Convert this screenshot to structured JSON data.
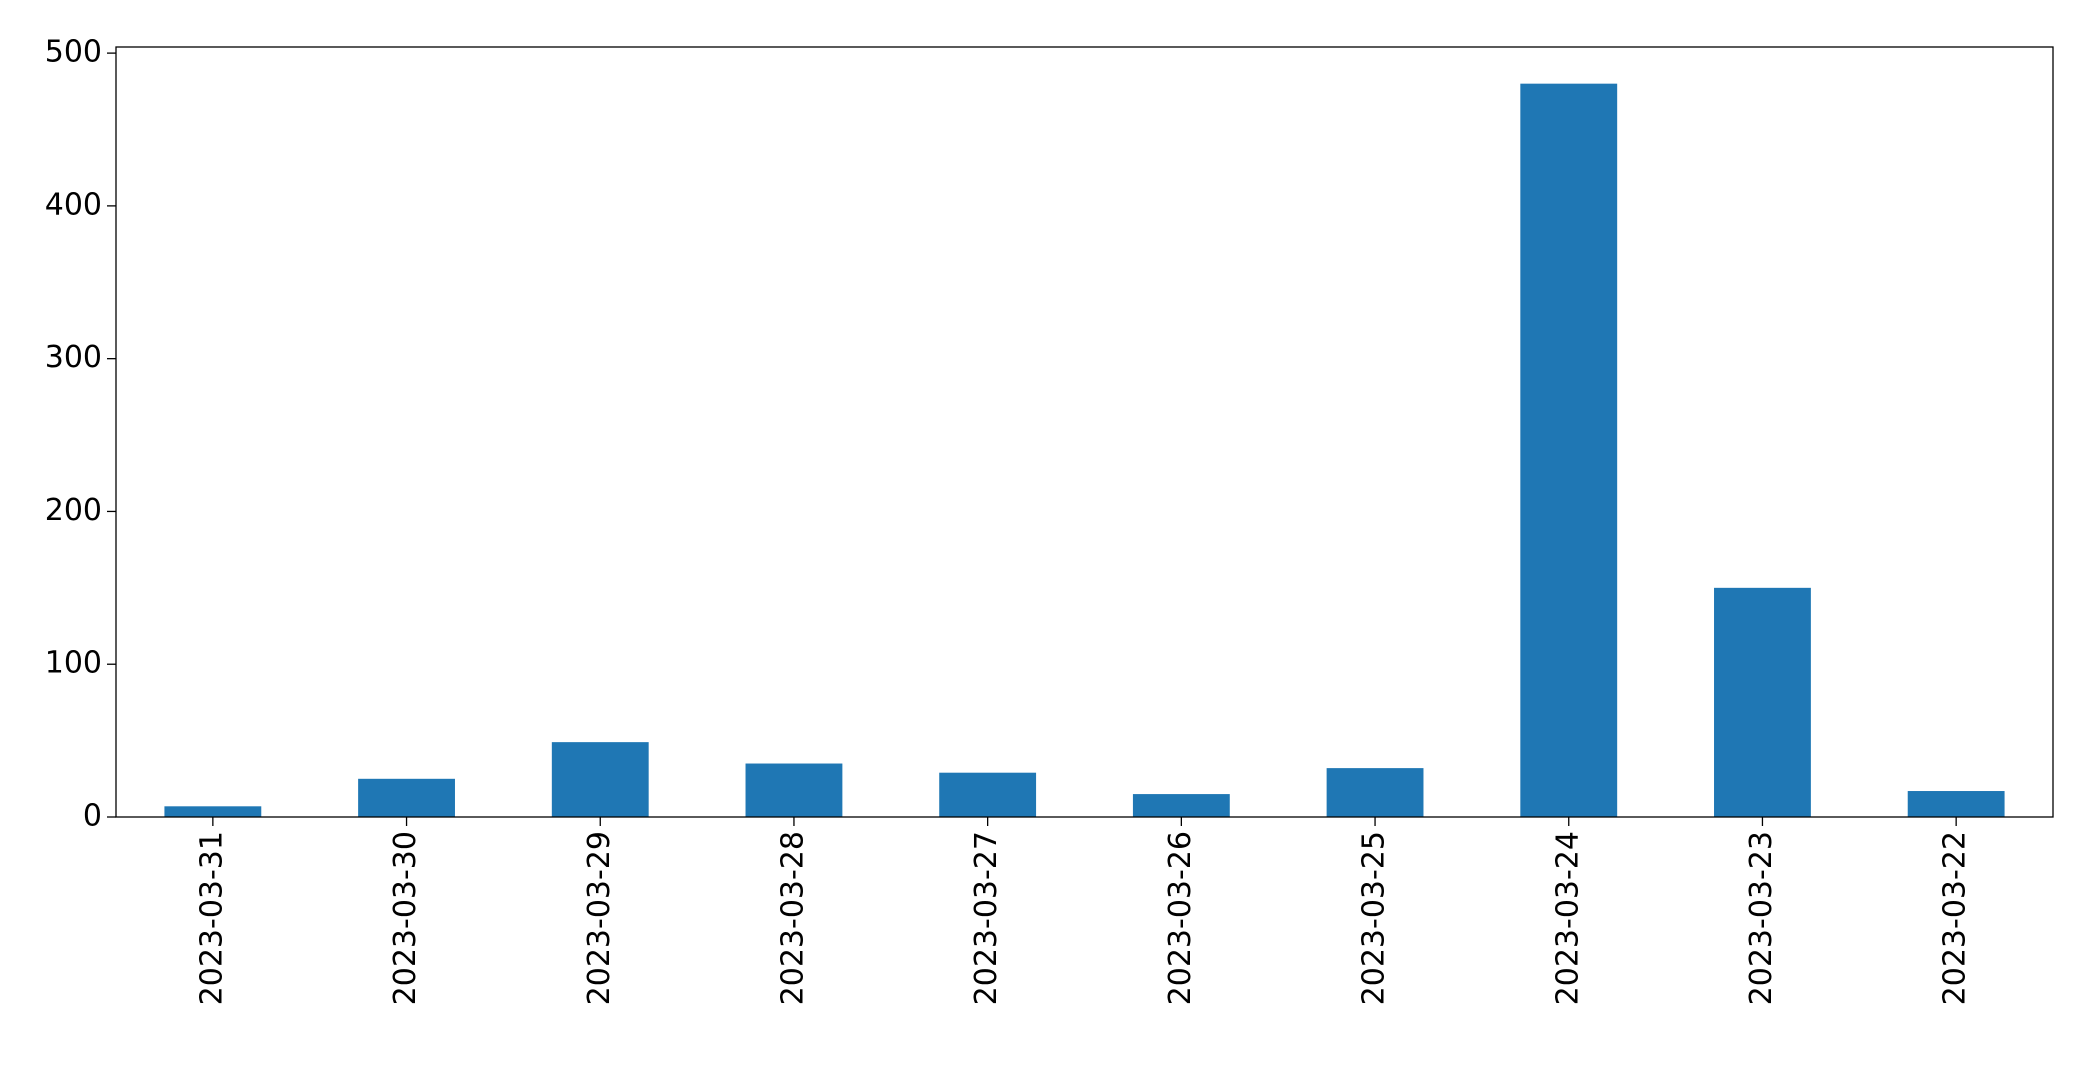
{
  "chart_data": {
    "type": "bar",
    "categories": [
      "2023-03-31",
      "2023-03-30",
      "2023-03-29",
      "2023-03-28",
      "2023-03-27",
      "2023-03-26",
      "2023-03-25",
      "2023-03-24",
      "2023-03-23",
      "2023-03-22"
    ],
    "values": [
      7,
      25,
      49,
      35,
      29,
      15,
      32,
      480,
      150,
      17
    ],
    "color": "#1f77b4",
    "ylim": [
      0,
      504
    ],
    "yticks": [
      0,
      100,
      200,
      300,
      400,
      500
    ],
    "grid": false
  }
}
